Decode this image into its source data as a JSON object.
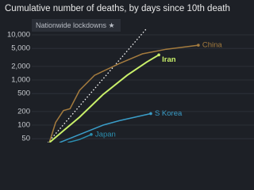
{
  "chart_data": {
    "type": "line",
    "title": "Cumulative number of deaths, by days since 10th death",
    "annotation": "Nationwide lockdowns ★",
    "y_scale": "log",
    "grid": true,
    "xlim": [
      0,
      65
    ],
    "ylim": [
      40,
      14000
    ],
    "yticks": [
      {
        "value": 10000,
        "label": "10,000"
      },
      {
        "value": 5000,
        "label": "5,000"
      },
      {
        "value": 2000,
        "label": "2,000"
      },
      {
        "value": 1000,
        "label": "1,000"
      },
      500,
      200,
      100,
      50
    ],
    "reference": {
      "x": [
        1.3,
        34.5
      ],
      "values": [
        40,
        14000
      ]
    },
    "series": [
      {
        "name": "China",
        "color": "#a47b3e",
        "x": [
          1.9,
          4,
          6.6,
          8.8,
          12,
          17,
          25.2,
          33,
          41,
          51.7
        ],
        "values": [
          41,
          115,
          210,
          230,
          590,
          1270,
          2300,
          3800,
          4800,
          5900
        ]
      },
      {
        "name": "Iran",
        "color": "#c9f06a",
        "x": [
          1.9,
          6.6,
          12,
          19.9,
          27.9,
          34.5,
          38.5
        ],
        "values": [
          41,
          75,
          150,
          480,
          1270,
          2500,
          3600
        ]
      },
      {
        "name": "S Korea",
        "color": "#3a9dc8",
        "x": [
          5.3,
          12,
          19.9,
          25.2,
          30.5,
          35.8
        ],
        "values": [
          41,
          62,
          100,
          125,
          150,
          180
        ]
      },
      {
        "name": "Japan",
        "color": "#2b8fb0",
        "x": [
          8,
          12,
          15.9
        ],
        "values": [
          41,
          48,
          62
        ]
      }
    ]
  }
}
